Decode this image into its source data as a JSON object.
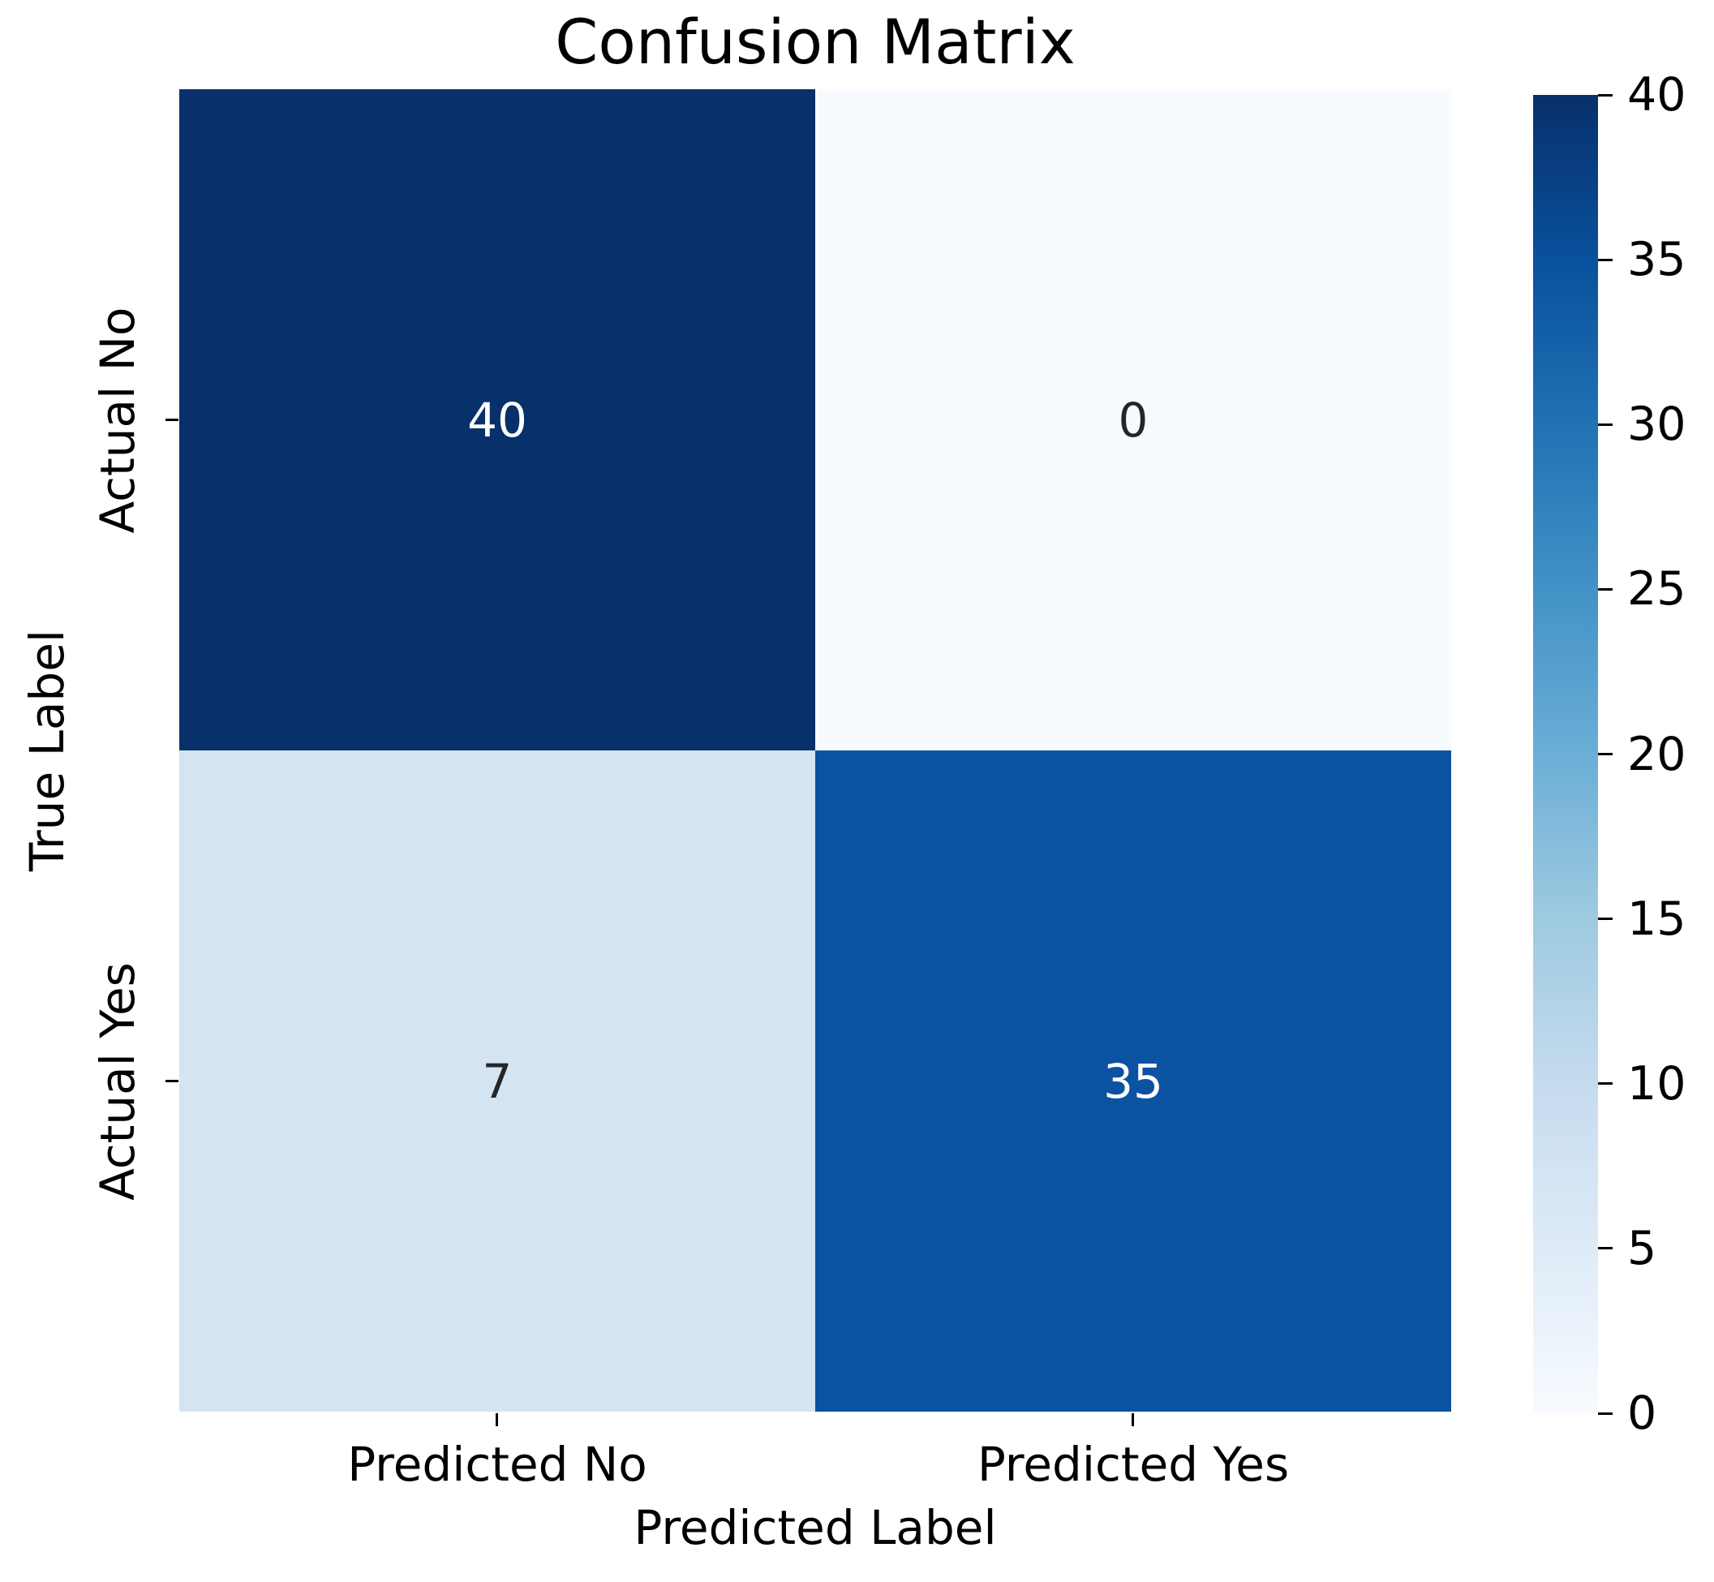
{
  "title": "Confusion Matrix",
  "colors": {
    "background": "#ffffff",
    "text": "#000000",
    "annot_on_dark": "#ffffff",
    "annot_on_light": "#262626",
    "tick": "#000000"
  },
  "chart_data": {
    "type": "heatmap",
    "title": "Confusion Matrix",
    "xlabel": "Predicted Label",
    "ylabel": "True Label",
    "x_categories": [
      "Predicted No",
      "Predicted Yes"
    ],
    "y_categories": [
      "Actual No",
      "Actual Yes"
    ],
    "values": [
      [
        40,
        0
      ],
      [
        7,
        35
      ]
    ],
    "colormap": "Blues",
    "vmin": 0,
    "vmax": 40,
    "grid": false,
    "legend_position": "right-colorbar",
    "cells": [
      {
        "row": "Actual No",
        "col": "Predicted No",
        "value": "40",
        "color": "#08306b",
        "text_color": "#ffffff"
      },
      {
        "row": "Actual No",
        "col": "Predicted Yes",
        "value": "0",
        "color": "#f7fbff",
        "text_color": "#262626"
      },
      {
        "row": "Actual Yes",
        "col": "Predicted No",
        "value": "7",
        "color": "#d5e4f3",
        "text_color": "#262626"
      },
      {
        "row": "Actual Yes",
        "col": "Predicted Yes",
        "value": "35",
        "color": "#0b52a1",
        "text_color": "#ffffff"
      }
    ],
    "colorbar": {
      "min": 0,
      "max": 40,
      "ticks": [
        "0",
        "5",
        "10",
        "15",
        "20",
        "25",
        "30",
        "35",
        "40"
      ],
      "gradient_stops": [
        "#f7fbff",
        "#deebf7",
        "#c6dbef",
        "#9ecae1",
        "#6baed6",
        "#4292c6",
        "#2171b5",
        "#08519c",
        "#08306b"
      ]
    }
  }
}
